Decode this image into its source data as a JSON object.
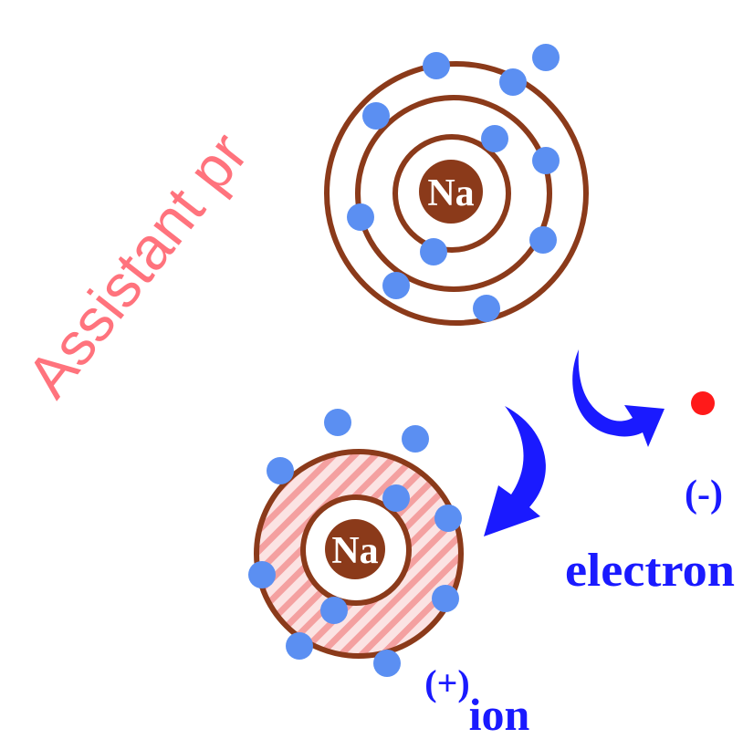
{
  "diagram": {
    "atom": {
      "symbol": "Na",
      "shell_color": "#8b3a1a",
      "electron_color": "#5b8ff2"
    },
    "ion": {
      "symbol": "Na",
      "charge_label": "(+)",
      "label": "ion",
      "hatch_color": "#f4a0a0"
    },
    "free_electron": {
      "charge_label": "(-)",
      "label": "electron",
      "color": "#ff1a1a"
    },
    "arrow_color": "#1a1aff",
    "label_color": "#1a1aff"
  },
  "watermark": {
    "text": "Assistant pr",
    "color": "#ff5a66"
  }
}
